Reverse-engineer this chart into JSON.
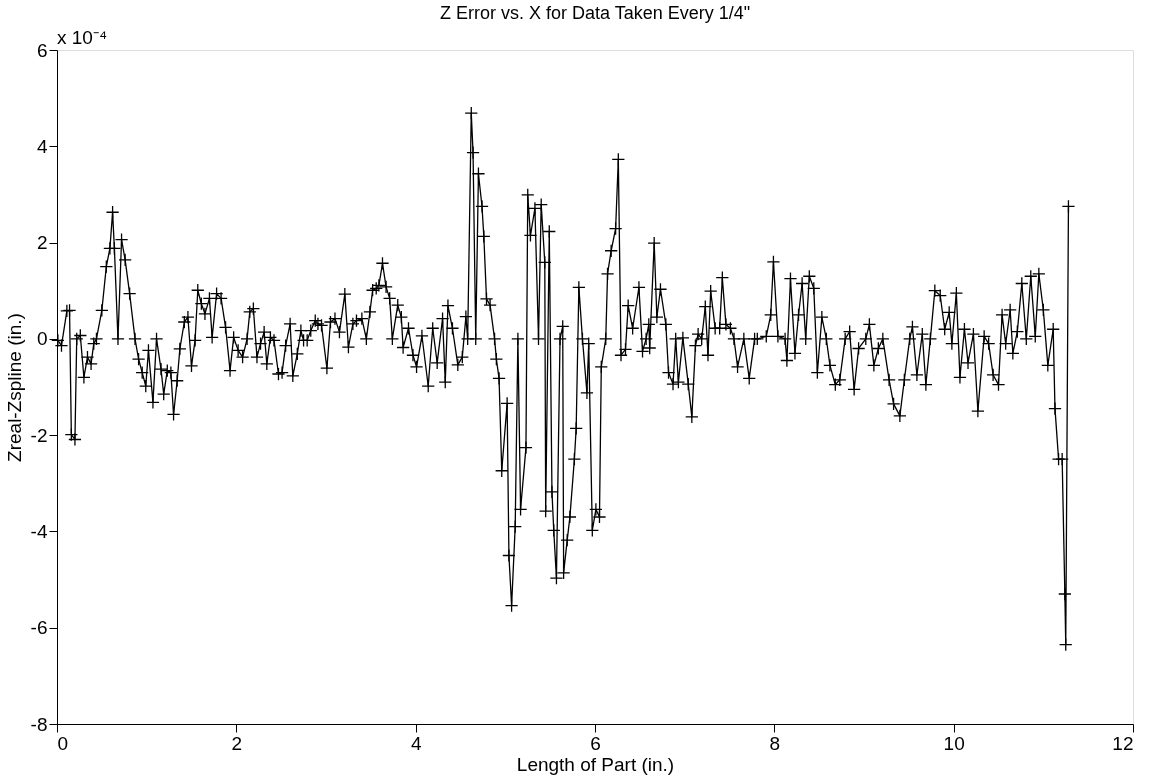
{
  "chart_data": {
    "type": "line",
    "title": "Z Error vs. X for Data Taken Every 1/4\"",
    "xlabel": "Length of Part (in.)",
    "ylabel": "Zreal-Zspline (in.)",
    "annotations": [
      "x 10⁻⁴"
    ],
    "xlim": [
      0,
      12
    ],
    "xticks": [
      0,
      2,
      4,
      6,
      8,
      10,
      12
    ],
    "ylim": [
      -8,
      6
    ],
    "yticks": [
      -8,
      -6,
      -4,
      -2,
      0,
      2,
      4,
      6
    ],
    "grid": false,
    "marker": "cross",
    "line_style": "solid",
    "series": [
      {
        "color": "#000000",
        "x": [
          0.01,
          0.05,
          0.11,
          0.14,
          0.16,
          0.2,
          0.22,
          0.26,
          0.3,
          0.34,
          0.38,
          0.41,
          0.44,
          0.5,
          0.55,
          0.59,
          0.62,
          0.64,
          0.68,
          0.72,
          0.76,
          0.81,
          0.87,
          0.91,
          0.95,
          0.99,
          1.02,
          1.07,
          1.11,
          1.16,
          1.19,
          1.23,
          1.27,
          1.3,
          1.34,
          1.37,
          1.42,
          1.46,
          1.5,
          1.54,
          1.57,
          1.61,
          1.65,
          1.7,
          1.73,
          1.78,
          1.83,
          1.88,
          1.93,
          1.97,
          2.02,
          2.07,
          2.12,
          2.15,
          2.19,
          2.23,
          2.27,
          2.31,
          2.34,
          2.38,
          2.42,
          2.47,
          2.51,
          2.55,
          2.6,
          2.63,
          2.68,
          2.72,
          2.75,
          2.79,
          2.83,
          2.88,
          2.91,
          2.95,
          3.01,
          3.05,
          3.1,
          3.15,
          3.21,
          3.25,
          3.3,
          3.34,
          3.4,
          3.45,
          3.49,
          3.52,
          3.56,
          3.59,
          3.63,
          3.67,
          3.71,
          3.74,
          3.8,
          3.84,
          3.86,
          3.92,
          3.97,
          4.01,
          4.07,
          4.14,
          4.19,
          4.24,
          4.3,
          4.33,
          4.36,
          4.41,
          4.47,
          4.52,
          4.56,
          4.58,
          4.62,
          4.64,
          4.67,
          4.7,
          4.74,
          4.76,
          4.79,
          4.83,
          4.88,
          4.9,
          4.93,
          4.96,
          5.02,
          5.04,
          5.07,
          5.11,
          5.14,
          5.17,
          5.23,
          5.25,
          5.28,
          5.33,
          5.37,
          5.4,
          5.44,
          5.45,
          5.49,
          5.52,
          5.54,
          5.57,
          5.61,
          5.64,
          5.65,
          5.69,
          5.72,
          5.77,
          5.79,
          5.82,
          5.86,
          5.91,
          5.93,
          5.97,
          6.01,
          6.05,
          6.07,
          6.12,
          6.14,
          6.18,
          6.23,
          6.26,
          6.29,
          6.34,
          6.37,
          6.42,
          6.49,
          6.53,
          6.57,
          6.6,
          6.61,
          6.66,
          6.69,
          6.73,
          6.79,
          6.82,
          6.87,
          6.9,
          6.93,
          6.98,
          7.04,
          7.08,
          7.12,
          7.15,
          7.19,
          7.23,
          7.26,
          7.29,
          7.34,
          7.39,
          7.42,
          7.46,
          7.51,
          7.55,
          7.59,
          7.66,
          7.72,
          7.78,
          7.81,
          7.91,
          7.96,
          7.99,
          8.04,
          8.12,
          8.14,
          8.18,
          8.23,
          8.27,
          8.31,
          8.35,
          8.39,
          8.44,
          8.48,
          8.53,
          8.58,
          8.62,
          8.68,
          8.73,
          8.79,
          8.84,
          8.89,
          8.94,
          9.02,
          9.06,
          9.11,
          9.16,
          9.21,
          9.28,
          9.33,
          9.4,
          9.45,
          9.51,
          9.54,
          9.59,
          9.65,
          9.69,
          9.74,
          9.79,
          9.85,
          9.9,
          9.95,
          9.98,
          10.03,
          10.07,
          10.12,
          10.16,
          10.22,
          10.27,
          10.34,
          10.39,
          10.44,
          10.5,
          10.54,
          10.58,
          10.63,
          10.66,
          10.71,
          10.76,
          10.81,
          10.86,
          10.91,
          10.95,
          11.0,
          11.05,
          11.11,
          11.13,
          11.17,
          11.21,
          11.24,
          11.25,
          11.28
        ],
        "values": [
          -0.03,
          -0.14,
          0.58,
          0.59,
          -1.99,
          -2.09,
          0,
          0.07,
          -0.8,
          -0.38,
          -0.52,
          -0.1,
          0,
          0.59,
          1.5,
          1.88,
          2.63,
          1.88,
          0,
          2.06,
          1.64,
          0.94,
          0,
          -0.42,
          -0.7,
          -0.98,
          -0.24,
          -1.32,
          0,
          -0.63,
          -1.15,
          -0.66,
          -0.7,
          -1.57,
          -0.87,
          -0.21,
          0.35,
          0.45,
          -0.56,
          -0.03,
          1.01,
          0.73,
          0.52,
          0.84,
          0.03,
          0.94,
          0.84,
          0.24,
          -0.66,
          0.03,
          -0.24,
          -0.38,
          0,
          0.56,
          0.63,
          -0.38,
          -0.1,
          0.14,
          -0.52,
          0.03,
          -0.03,
          -0.73,
          -0.7,
          -0.14,
          0.31,
          -0.77,
          -0.31,
          0.17,
          -0.03,
          -0.03,
          0.17,
          0.38,
          0.31,
          0.28,
          -0.61,
          0.35,
          0.42,
          0.14,
          0.93,
          -0.17,
          0.31,
          0.38,
          0.42,
          0,
          0.56,
          1.01,
          1.05,
          1.11,
          1.57,
          1.08,
          0.84,
          0,
          0.7,
          0.45,
          -0.18,
          0.22,
          -0.34,
          -0.58,
          0.06,
          -0.98,
          0.22,
          -0.5,
          0.42,
          -0.9,
          0.69,
          0.22,
          -0.54,
          -0.38,
          0.46,
          0,
          4.69,
          3.87,
          0,
          3.43,
          2.75,
          2.13,
          0.83,
          0.7,
          0,
          -0.42,
          -0.82,
          -2.74,
          -1.34,
          -4.5,
          -5.54,
          -3.9,
          0,
          -3.54,
          -2.26,
          2.99,
          2.15,
          2.71,
          0,
          2.79,
          1.59,
          -3.58,
          2.23,
          -3.18,
          -3.98,
          -4.97,
          0,
          0.26,
          -4.86,
          -4.18,
          -3.7,
          -2.5,
          -1.86,
          1.07,
          0,
          -1.12,
          -0.1,
          -3.98,
          -3.54,
          -3.7,
          -0.58,
          0,
          1.35,
          1.83,
          2.29,
          3.73,
          -0.34,
          -0.22,
          0.69,
          0.22,
          1.07,
          -0.26,
          0,
          0.3,
          -0.19,
          1.99,
          0.45,
          1.03,
          0.3,
          -0.7,
          -0.94,
          0,
          -0.9,
          0.02,
          -0.94,
          -1.62,
          -0.14,
          0.1,
          0,
          0.67,
          -0.34,
          0.99,
          0.22,
          0.22,
          1.27,
          0.3,
          0.22,
          0,
          -0.58,
          0,
          -0.82,
          0,
          0,
          0.05,
          0.5,
          1.6,
          0.05,
          0,
          -0.45,
          1.25,
          -0.3,
          0.5,
          1.15,
          0,
          1.3,
          1.05,
          -0.7,
          0.45,
          0,
          -0.55,
          -0.95,
          -0.85,
          0,
          0.15,
          -1.05,
          -0.2,
          0,
          0.3,
          -0.55,
          -0.2,
          0,
          -0.85,
          -1.35,
          -1.6,
          -0.85,
          0,
          0.25,
          -0.75,
          0.1,
          -0.95,
          0,
          1.0,
          0.9,
          0.2,
          0.55,
          -0.1,
          0.95,
          -0.8,
          0.2,
          -0.5,
          0.1,
          -1.5,
          0.05,
          -0.1,
          -0.75,
          -0.95,
          0.5,
          -0.1,
          0.6,
          -0.3,
          0.15,
          1.15,
          0,
          1.3,
          0.05,
          1.35,
          0.6,
          -0.55,
          0.2,
          -1.45,
          -2.5,
          -2.5,
          -5.3,
          -6.35,
          2.75
        ]
      }
    ]
  }
}
